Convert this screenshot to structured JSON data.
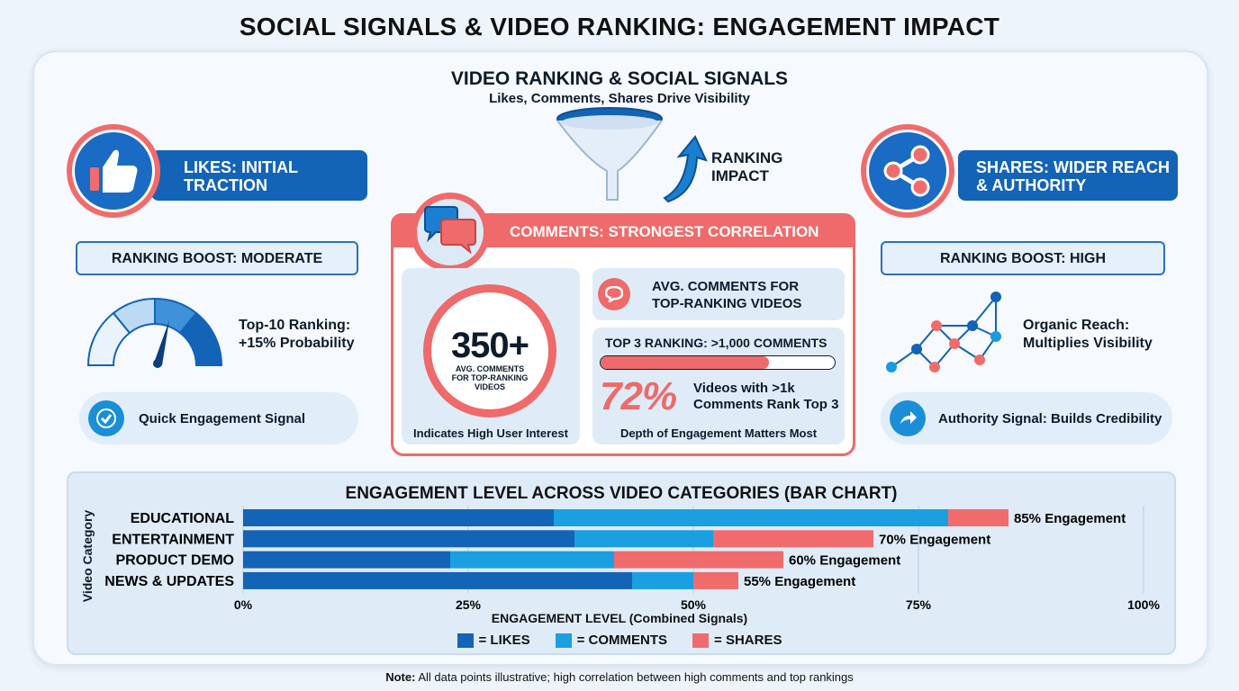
{
  "title": "SOCIAL SIGNALS & VIDEO RANKING: ENGAGEMENT IMPACT",
  "header": {
    "title": "VIDEO RANKING & SOCIAL SIGNALS",
    "subtitle": "Likes, Comments, Shares Drive Visibility",
    "ranking_impact": [
      "RANKING",
      "IMPACT"
    ]
  },
  "likes": {
    "label": [
      "LIKES: INITIAL",
      "TRACTION"
    ],
    "boost": "RANKING BOOST: MODERATE",
    "stat": [
      "Top-10 Ranking:",
      "+15% Probability"
    ],
    "signal": "Quick Engagement Signal",
    "icons": [
      "thumbs-up-icon",
      "gauge-icon",
      "check-icon"
    ]
  },
  "shares": {
    "label": [
      "SHARES: WIDER REACH",
      "& AUTHORITY"
    ],
    "boost": "RANKING BOOST: HIGH",
    "stat": [
      "Organic Reach:",
      "Multiplies Visibility"
    ],
    "signal": "Authority Signal: Builds Credibility",
    "icons": [
      "share-icon",
      "network-icon",
      "forward-arrow-icon"
    ]
  },
  "comments": {
    "header": "COMMENTS: STRONGEST CORRELATION",
    "big_number": "350+",
    "big_caption": [
      "AVG. COMMENTS",
      "FOR TOP-RANKING",
      "VIDEOS"
    ],
    "left_footer": "Indicates High User Interest",
    "avg_title": [
      "AVG. COMMENTS FOR",
      "TOP-RANKING VIDEOS"
    ],
    "top3": "TOP 3 RANKING: >1,000 COMMENTS",
    "top3_progress": 0.72,
    "pct": "72%",
    "pct_text": [
      "Videos with >1k",
      "Comments Rank Top 3"
    ],
    "right_footer": "Depth of Engagement Matters Most"
  },
  "colors": {
    "likes": "#1363b6",
    "comments": "#1aa0e0",
    "shares": "#f06c6c",
    "accent_red": "#ef6a6a"
  },
  "chart_data": {
    "type": "bar",
    "stacked": true,
    "orientation": "horizontal",
    "title": "ENGAGEMENT LEVEL ACROSS VIDEO CATEGORIES (BAR CHART)",
    "xlabel": "ENGAGEMENT LEVEL (Combined Signals)",
    "ylabel": "Video Category",
    "xlim": [
      0,
      100
    ],
    "xticks": [
      "0%",
      "25%",
      "50%",
      "75%",
      "100%"
    ],
    "categories": [
      "EDUCATIONAL",
      "ENTERTAINMENT",
      "PRODUCT DEMO",
      "NEWS & UPDATES"
    ],
    "series": [
      {
        "name": "= LIKES",
        "values": [
          34.5,
          36.8,
          23.0,
          43.2
        ]
      },
      {
        "name": "= COMMENTS",
        "values": [
          43.8,
          15.4,
          18.2,
          6.8
        ]
      },
      {
        "name": "= SHARES",
        "values": [
          6.7,
          17.8,
          18.8,
          5.0
        ]
      }
    ],
    "totals": [
      85,
      70,
      60,
      55
    ],
    "data_labels": [
      "85% Engagement",
      "70% Engagement",
      "60% Engagement",
      "55% Engagement"
    ],
    "legend": "bottom-center",
    "grid": true
  },
  "note": {
    "bold": "Note:",
    "text": " All data points illustrative; high correlation between high comments and top rankings"
  }
}
